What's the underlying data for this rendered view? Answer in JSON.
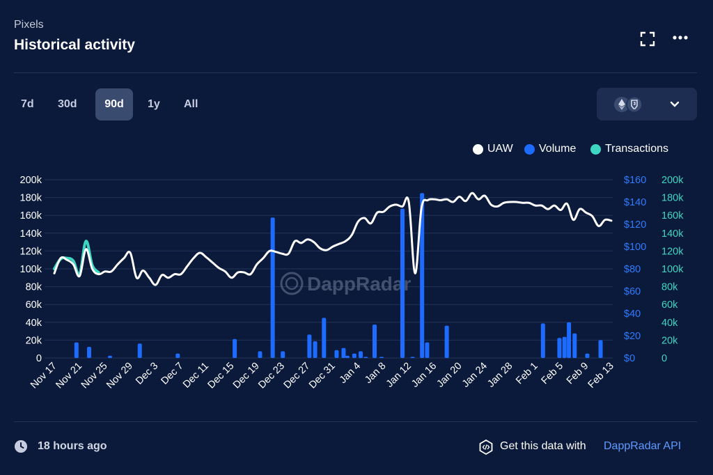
{
  "header": {
    "subtitle": "Pixels",
    "title": "Historical activity",
    "expand_icon": "expand-icon",
    "more_icon": "more-horizontal-icon"
  },
  "range": {
    "buttons": [
      "7d",
      "30d",
      "90d",
      "1y",
      "All"
    ],
    "selected": "90d"
  },
  "chain_selector": {
    "icons": [
      "ethereum-icon",
      "ronin-icon"
    ],
    "chevron": "chevron-down-icon"
  },
  "legend": [
    {
      "label": "UAW",
      "color": "#ffffff"
    },
    {
      "label": "Volume",
      "color": "#1e6bff"
    },
    {
      "label": "Transactions",
      "color": "#3ed6c3"
    }
  ],
  "watermark": "DappRadar",
  "footer": {
    "updated": "18 hours ago",
    "api_text": "Get this data with",
    "api_link": "DappRadar API"
  },
  "colors": {
    "background": "#0b1a3a",
    "uaw": "#ffffff",
    "volume": "#1e6bff",
    "transactions": "#3ed6c3"
  },
  "chart_data": {
    "type": "line",
    "x_ticks": [
      "Nov 17",
      "Nov 21",
      "Nov 25",
      "Nov 29",
      "Dec 3",
      "Dec 7",
      "Dec 11",
      "Dec 15",
      "Dec 19",
      "Dec 23",
      "Dec 27",
      "Dec 31",
      "Jan 4",
      "Jan 8",
      "Jan 12",
      "Jan 16",
      "Jan 20",
      "Jan 24",
      "Jan 28",
      "Feb 1",
      "Feb 5",
      "Feb 9",
      "Feb 13"
    ],
    "y_left": {
      "ticks": [
        "0",
        "20k",
        "40k",
        "60k",
        "80k",
        "100k",
        "120k",
        "140k",
        "160k",
        "180k",
        "200k"
      ],
      "range": [
        0,
        200000
      ]
    },
    "y_right_volume": {
      "ticks": [
        "$0",
        "$20",
        "$40",
        "$60",
        "$80",
        "$100",
        "$120",
        "$140",
        "$160"
      ],
      "range": [
        0,
        160
      ]
    },
    "y_right_transactions": {
      "ticks": [
        "0",
        "20k",
        "40k",
        "60k",
        "80k",
        "100k",
        "120k",
        "140k",
        "160k",
        "180k",
        "200k"
      ],
      "range": [
        0,
        200000
      ]
    },
    "grid": "horizontal",
    "legend_position": "top-right",
    "series": [
      {
        "name": "UAW",
        "type": "line",
        "axis": "left",
        "x": [
          0,
          1,
          2,
          3,
          4,
          5,
          6,
          7,
          8,
          9,
          10,
          11,
          12,
          13,
          14,
          15,
          16,
          17,
          18,
          19,
          20,
          21,
          22,
          23,
          24,
          25,
          26,
          27,
          28,
          29,
          30,
          31,
          32,
          33,
          34,
          35,
          36,
          37,
          38,
          39,
          40,
          41,
          42,
          43,
          44,
          45,
          46,
          47,
          48,
          49,
          50,
          51,
          52,
          53,
          54,
          55,
          56,
          57,
          58,
          59,
          60,
          61,
          62,
          63,
          64,
          65,
          66,
          67,
          68,
          69,
          70,
          71,
          72,
          73,
          74,
          75,
          76,
          77,
          78,
          79,
          80,
          81,
          82,
          83,
          84,
          85,
          86,
          87,
          88
        ],
        "values": [
          95000,
          112000,
          110000,
          105000,
          92000,
          122000,
          100000,
          94000,
          97000,
          97000,
          105000,
          112000,
          118000,
          90000,
          98000,
          90000,
          82000,
          93000,
          90000,
          94000,
          94000,
          103000,
          112000,
          118000,
          113000,
          107000,
          101000,
          97000,
          90000,
          96000,
          96000,
          94000,
          105000,
          112000,
          120000,
          119000,
          117000,
          117000,
          131000,
          129000,
          133000,
          130000,
          123000,
          121000,
          125000,
          128000,
          131000,
          138000,
          153000,
          157000,
          151000,
          163000,
          164000,
          170000,
          172000,
          170000,
          175000,
          95000,
          168000,
          177000,
          178000,
          177000,
          178000,
          175000,
          181000,
          176000,
          185000,
          178000,
          182000,
          172000,
          170000,
          174000,
          175000,
          175000,
          174000,
          174000,
          171000,
          171000,
          167000,
          171000,
          166000,
          173000,
          155000,
          167000,
          163000,
          159000,
          148000,
          155000,
          154000
        ],
        "color": "#ffffff"
      },
      {
        "name": "Transactions",
        "type": "line",
        "axis": "right_transactions",
        "x": [
          0,
          1,
          2,
          3,
          4,
          5,
          6,
          7
        ],
        "values": [
          100000,
          111000,
          112000,
          109000,
          94000,
          131000,
          104000,
          96000
        ],
        "color": "#3ed6c3"
      },
      {
        "name": "Volume",
        "type": "bar",
        "axis": "right_volume",
        "x": [
          3.5,
          5.5,
          8.8,
          13.5,
          19.5,
          28.5,
          32.5,
          34.5,
          36.1,
          40.3,
          41.2,
          42.6,
          44.6,
          45.7,
          46.3,
          47.4,
          48.4,
          49.2,
          50.6,
          51.7,
          55.0,
          56.6,
          58.1,
          58.9,
          62.0,
          77.2,
          79.8,
          80.6,
          81.3,
          82.2,
          84.2,
          86.3
        ],
        "values": [
          14,
          10,
          2,
          13,
          4,
          17,
          6,
          126,
          6,
          21,
          15,
          36,
          7,
          9,
          2,
          4,
          6,
          1,
          30,
          1,
          134,
          1,
          148,
          14,
          29,
          31,
          18,
          19,
          32,
          22,
          4,
          16
        ],
        "color": "#1e6bff"
      }
    ]
  }
}
